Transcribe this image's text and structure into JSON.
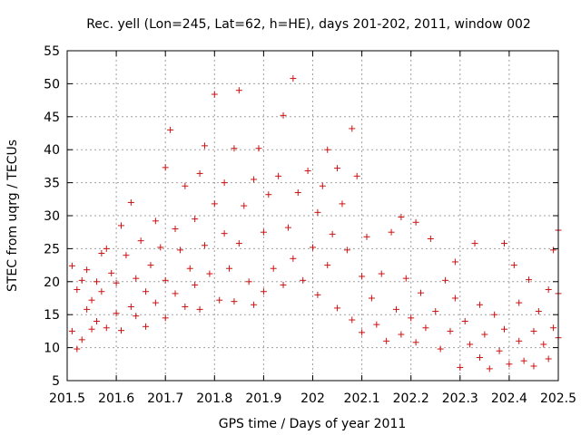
{
  "chart_data": {
    "type": "scatter",
    "title": "Rec. yell (Lon=245, Lat=62, h=HE), days 201-202, 2011, window 002",
    "xlabel": "GPS time / Days of year 2011",
    "ylabel": "STEC from uqrg / TECUs",
    "xlim": [
      201.5,
      202.5
    ],
    "ylim": [
      5,
      55
    ],
    "xticks": [
      "201.5",
      "201.6",
      "201.7",
      "201.8",
      "201.9",
      "202",
      "202.1",
      "202.2",
      "202.3",
      "202.4",
      "202.5"
    ],
    "yticks": [
      "5",
      "10",
      "15",
      "20",
      "25",
      "30",
      "35",
      "40",
      "45",
      "50",
      "55"
    ],
    "grid": true,
    "marker": "plus",
    "color": "#cc1111",
    "points": [
      [
        201.51,
        12.5
      ],
      [
        201.51,
        22.4
      ],
      [
        201.52,
        18.8
      ],
      [
        201.52,
        9.8
      ],
      [
        201.53,
        20.2
      ],
      [
        201.53,
        11.2
      ],
      [
        201.54,
        15.8
      ],
      [
        201.54,
        21.8
      ],
      [
        201.55,
        12.8
      ],
      [
        201.55,
        17.2
      ],
      [
        201.56,
        20.0
      ],
      [
        201.56,
        14.0
      ],
      [
        201.57,
        24.3
      ],
      [
        201.57,
        18.5
      ],
      [
        201.58,
        25.0
      ],
      [
        201.58,
        13.0
      ],
      [
        201.59,
        21.3
      ],
      [
        201.6,
        15.2
      ],
      [
        201.6,
        19.8
      ],
      [
        201.61,
        28.5
      ],
      [
        201.61,
        12.6
      ],
      [
        201.62,
        24.0
      ],
      [
        201.63,
        16.2
      ],
      [
        201.63,
        32.0
      ],
      [
        201.64,
        20.5
      ],
      [
        201.64,
        14.8
      ],
      [
        201.65,
        26.2
      ],
      [
        201.66,
        18.5
      ],
      [
        201.66,
        13.2
      ],
      [
        201.67,
        22.5
      ],
      [
        201.68,
        29.2
      ],
      [
        201.68,
        16.8
      ],
      [
        201.69,
        25.2
      ],
      [
        201.7,
        20.2
      ],
      [
        201.7,
        37.3
      ],
      [
        201.7,
        14.5
      ],
      [
        201.71,
        43.0
      ],
      [
        201.72,
        28.0
      ],
      [
        201.72,
        18.2
      ],
      [
        201.73,
        24.8
      ],
      [
        201.74,
        34.5
      ],
      [
        201.74,
        16.2
      ],
      [
        201.75,
        22.0
      ],
      [
        201.76,
        29.5
      ],
      [
        201.76,
        19.5
      ],
      [
        201.77,
        36.4
      ],
      [
        201.77,
        15.8
      ],
      [
        201.78,
        25.5
      ],
      [
        201.78,
        40.6
      ],
      [
        201.79,
        21.2
      ],
      [
        201.8,
        31.8
      ],
      [
        201.8,
        48.4
      ],
      [
        201.81,
        17.2
      ],
      [
        201.82,
        27.3
      ],
      [
        201.82,
        35.0
      ],
      [
        201.83,
        22.0
      ],
      [
        201.84,
        40.2
      ],
      [
        201.84,
        17.0
      ],
      [
        201.85,
        49.0
      ],
      [
        201.85,
        25.8
      ],
      [
        201.86,
        31.5
      ],
      [
        201.87,
        20.0
      ],
      [
        201.88,
        35.5
      ],
      [
        201.88,
        16.5
      ],
      [
        201.89,
        40.2
      ],
      [
        201.9,
        27.5
      ],
      [
        201.9,
        18.5
      ],
      [
        201.91,
        33.2
      ],
      [
        201.92,
        22.0
      ],
      [
        201.93,
        36.0
      ],
      [
        201.94,
        45.2
      ],
      [
        201.94,
        19.5
      ],
      [
        201.95,
        28.2
      ],
      [
        201.96,
        50.8
      ],
      [
        201.96,
        23.5
      ],
      [
        201.97,
        33.5
      ],
      [
        201.98,
        20.2
      ],
      [
        201.99,
        36.8
      ],
      [
        202.0,
        25.2
      ],
      [
        202.01,
        30.5
      ],
      [
        202.01,
        18.0
      ],
      [
        202.02,
        34.5
      ],
      [
        202.03,
        40.0
      ],
      [
        202.03,
        22.5
      ],
      [
        202.04,
        27.2
      ],
      [
        202.05,
        37.2
      ],
      [
        202.05,
        16.0
      ],
      [
        202.06,
        31.8
      ],
      [
        202.07,
        24.8
      ],
      [
        202.08,
        43.2
      ],
      [
        202.08,
        14.2
      ],
      [
        202.09,
        36.0
      ],
      [
        202.1,
        20.8
      ],
      [
        202.1,
        12.3
      ],
      [
        202.11,
        26.8
      ],
      [
        202.12,
        17.5
      ],
      [
        202.13,
        13.5
      ],
      [
        202.14,
        21.2
      ],
      [
        202.15,
        11.0
      ],
      [
        202.16,
        27.5
      ],
      [
        202.17,
        15.8
      ],
      [
        202.18,
        29.8
      ],
      [
        202.18,
        12.0
      ],
      [
        202.19,
        20.5
      ],
      [
        202.2,
        14.5
      ],
      [
        202.21,
        29.0
      ],
      [
        202.21,
        10.8
      ],
      [
        202.22,
        18.3
      ],
      [
        202.23,
        13.0
      ],
      [
        202.24,
        26.5
      ],
      [
        202.25,
        15.5
      ],
      [
        202.26,
        9.8
      ],
      [
        202.27,
        20.2
      ],
      [
        202.28,
        12.5
      ],
      [
        202.29,
        23.0
      ],
      [
        202.29,
        17.5
      ],
      [
        202.3,
        7.0
      ],
      [
        202.31,
        14.0
      ],
      [
        202.32,
        10.5
      ],
      [
        202.33,
        25.8
      ],
      [
        202.34,
        16.5
      ],
      [
        202.34,
        8.5
      ],
      [
        202.35,
        12.0
      ],
      [
        202.36,
        6.8
      ],
      [
        202.37,
        15.0
      ],
      [
        202.38,
        9.5
      ],
      [
        202.39,
        25.8
      ],
      [
        202.39,
        12.8
      ],
      [
        202.4,
        7.5
      ],
      [
        202.41,
        22.5
      ],
      [
        202.42,
        11.0
      ],
      [
        202.42,
        16.8
      ],
      [
        202.43,
        8.0
      ],
      [
        202.44,
        20.3
      ],
      [
        202.45,
        12.5
      ],
      [
        202.45,
        7.2
      ],
      [
        202.46,
        15.5
      ],
      [
        202.47,
        10.5
      ],
      [
        202.48,
        18.8
      ],
      [
        202.48,
        8.3
      ],
      [
        202.49,
        13.0
      ],
      [
        202.49,
        24.8
      ],
      [
        202.5,
        11.5
      ],
      [
        202.5,
        27.8
      ],
      [
        202.5,
        18.2
      ]
    ]
  }
}
